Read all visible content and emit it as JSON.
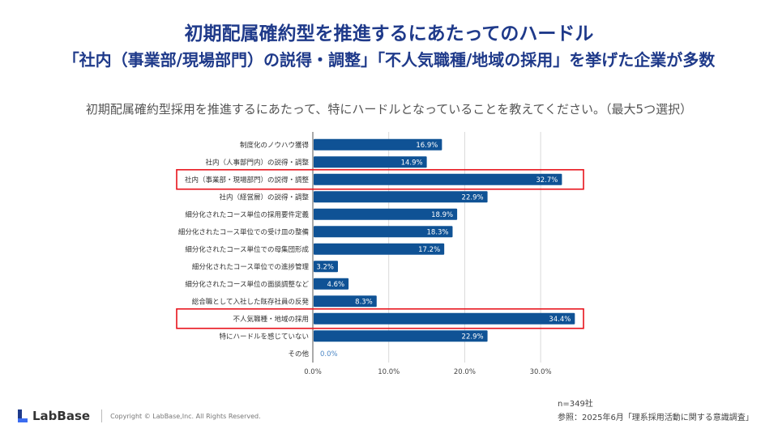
{
  "header": {
    "title": "初期配属確約型を推進するにあたってのハードル",
    "headline": "「社内（事業部/現場部門）の説得・調整」「不人気職種/地域の採用」を挙げた企業が多数",
    "question": "初期配属確約型採用を推進するにあたって、特にハードルとなっていることを教えてください。（最大5つ選択）"
  },
  "chart_data": {
    "type": "bar",
    "orientation": "horizontal",
    "title": "",
    "xlabel": "",
    "ylabel": "",
    "xlim": [
      0,
      35
    ],
    "xticks": [
      0,
      10,
      20,
      30
    ],
    "xtick_labels": [
      "0.0%",
      "10.0%",
      "20.0%",
      "30.0%"
    ],
    "grid": true,
    "categories": [
      "制度化のノウハウ獲得",
      "社内（人事部門内）の説得・調整",
      "社内（事業部・現場部門）の説得・調整",
      "社内（経営層）の説得・調整",
      "細分化されたコース単位の採用要件定義",
      "細分化されたコース単位での受け皿の整備",
      "細分化されたコース単位での母集団形成",
      "細分化されたコース単位での進捗管理",
      "細分化されたコース単位の面談調整など",
      "総合職として入社した既存社員の反発",
      "不人気職種・地域の採用",
      "特にハードルを感じていない",
      "その他"
    ],
    "values": [
      16.9,
      14.9,
      32.7,
      22.9,
      18.9,
      18.3,
      17.2,
      3.2,
      4.6,
      8.3,
      34.4,
      22.9,
      0.0
    ],
    "value_labels": [
      "16.9%",
      "14.9%",
      "32.7%",
      "22.9%",
      "18.9%",
      "18.3%",
      "17.2%",
      "3.2%",
      "4.6%",
      "8.3%",
      "34.4%",
      "22.9%",
      "0.0%"
    ],
    "highlighted": [
      "社内（事業部・現場部門）の説得・調整",
      "不人気職種・地域の採用"
    ],
    "colors": {
      "bar": "#0f5295",
      "highlight_box": "#e8131b",
      "grid": "#d9d9d9",
      "axis": "#555555"
    }
  },
  "footer": {
    "brand": "LabBase",
    "copyright": "Copyright ©  LabBase,Inc. All Rights Reserved.",
    "sample": "n=349社",
    "source": "参照：2025年6月「理系採用活動に関する意識調査」"
  }
}
